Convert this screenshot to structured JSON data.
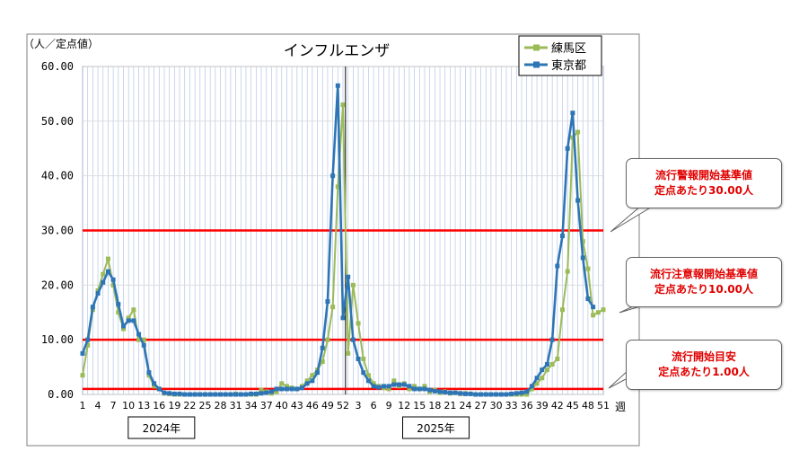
{
  "chart_data": {
    "type": "line",
    "title": "インフルエンザ",
    "ylabel": "（人／定点値）",
    "xlabel": "週",
    "ylim": [
      0,
      60
    ],
    "yticks": [
      "0.00",
      "10.00",
      "20.00",
      "30.00",
      "40.00",
      "50.00",
      "60.00"
    ],
    "year_labels": [
      "2024年",
      "2025年"
    ],
    "week_ticks_2024": [
      "1",
      "4",
      "7",
      "10",
      "13",
      "16",
      "19",
      "22",
      "25",
      "28",
      "31",
      "34",
      "37",
      "40",
      "43",
      "46",
      "49",
      "52"
    ],
    "week_ticks_2025": [
      "3",
      "6",
      "9",
      "12",
      "15",
      "18",
      "21",
      "24",
      "27",
      "30",
      "33",
      "36",
      "39",
      "42",
      "45",
      "48",
      "51"
    ],
    "weeks_2024": 52,
    "weeks_2025": 52,
    "legend": [
      {
        "name": "練馬区",
        "color": "#9bbb59"
      },
      {
        "name": "東京都",
        "color": "#2e75b6"
      }
    ],
    "series": [
      {
        "name": "練馬区",
        "color": "#9bbb59",
        "values": [
          3.5,
          9.0,
          15.5,
          19.0,
          22.0,
          24.8,
          20.0,
          15.0,
          12.0,
          14.0,
          15.5,
          10.0,
          10.0,
          3.5,
          1.5,
          1.0,
          0.2,
          0.1,
          0.0,
          0.0,
          0.0,
          0.0,
          0.0,
          0.0,
          0.0,
          0.0,
          0.0,
          0.0,
          0.0,
          0.0,
          0.1,
          0.0,
          0.0,
          0.0,
          0.0,
          0.8,
          0.5,
          0.2,
          0.5,
          2.0,
          1.5,
          1.2,
          1.0,
          1.5,
          2.5,
          3.5,
          4.5,
          6.0,
          10.0,
          16.0,
          38.0,
          53.0,
          7.5,
          20.0,
          13.0,
          6.5,
          3.5,
          2.0,
          1.5,
          1.2,
          1.0,
          2.5,
          1.5,
          2.0,
          1.0,
          1.5,
          1.0,
          1.5,
          0.5,
          0.8,
          0.3,
          0.5,
          0.2,
          0.3,
          0.1,
          0.2,
          0.1,
          0.0,
          0.0,
          0.0,
          0.0,
          0.0,
          0.0,
          0.0,
          0.0,
          0.0,
          0.0,
          0.0,
          1.0,
          2.0,
          3.0,
          4.5,
          5.5,
          6.5,
          15.5,
          22.5,
          47.0,
          48.0,
          28.0,
          23.0,
          14.5,
          15.0,
          15.5
        ]
      },
      {
        "name": "東京都",
        "color": "#2e75b6",
        "values": [
          7.5,
          10.0,
          16.0,
          18.5,
          20.5,
          22.5,
          21.0,
          16.5,
          12.5,
          13.5,
          13.5,
          11.0,
          9.0,
          4.0,
          2.0,
          1.0,
          0.3,
          0.2,
          0.1,
          0.1,
          0.0,
          0.0,
          0.0,
          0.0,
          0.0,
          0.0,
          0.0,
          0.0,
          0.0,
          0.0,
          0.0,
          0.0,
          0.0,
          0.1,
          0.1,
          0.2,
          0.3,
          0.5,
          1.0,
          1.0,
          1.0,
          1.0,
          1.0,
          1.2,
          2.0,
          2.5,
          4.0,
          8.5,
          17.0,
          40.0,
          56.5,
          14.0,
          21.5,
          10.0,
          6.5,
          4.0,
          2.5,
          1.5,
          1.3,
          1.5,
          1.5,
          1.8,
          1.8,
          1.8,
          1.5,
          1.0,
          1.0,
          1.0,
          0.8,
          0.6,
          0.5,
          0.4,
          0.3,
          0.3,
          0.2,
          0.1,
          0.1,
          0.0,
          0.0,
          0.0,
          0.0,
          0.0,
          0.0,
          0.0,
          0.1,
          0.2,
          0.3,
          0.5,
          1.5,
          3.0,
          4.5,
          5.5,
          10.0,
          23.5,
          29.0,
          45.0,
          51.5,
          35.5,
          25.0,
          17.5,
          16.0
        ]
      }
    ],
    "threshold_lines": [
      {
        "value": 30,
        "label_line1": "流行警報開始基準値",
        "label_line2": "定点あたり30.00人"
      },
      {
        "value": 10,
        "label_line1": "流行注意報開始基準値",
        "label_line2": "定点あたり10.00人"
      },
      {
        "value": 1,
        "label_line1": "流行開始目安",
        "label_line2": "定点あたり1.00人"
      }
    ],
    "grid": true
  }
}
